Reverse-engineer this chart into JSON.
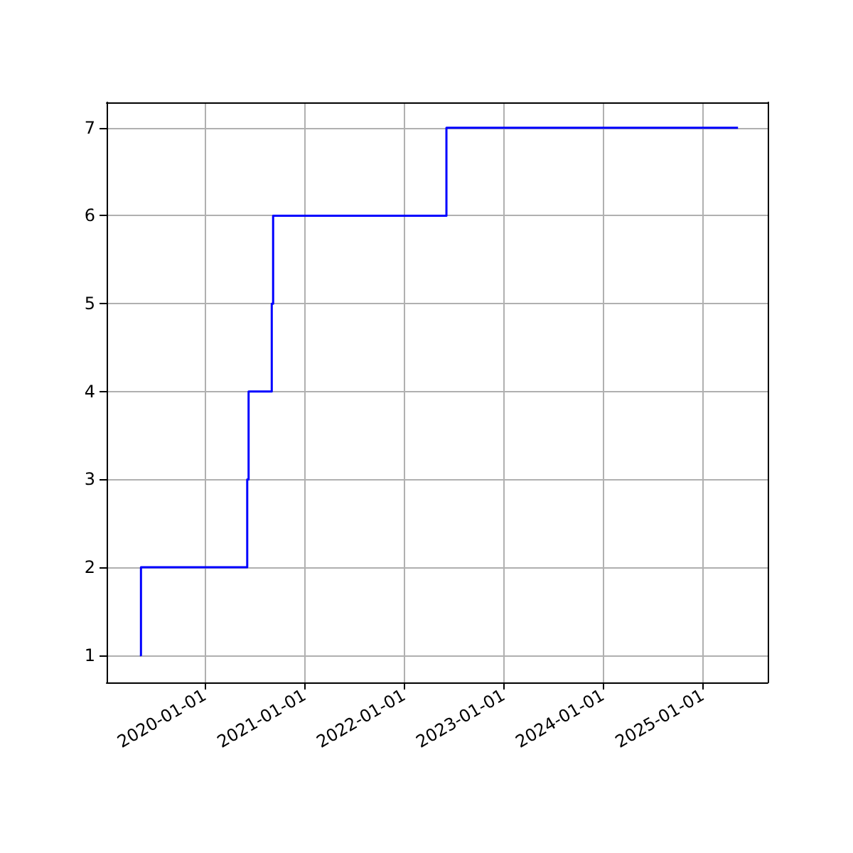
{
  "chart_data": {
    "type": "step",
    "x": [
      "2019-05-08",
      "2019-05-12",
      "2020-06-05",
      "2020-06-10",
      "2020-09-03",
      "2020-09-08",
      "2022-06-06",
      "2025-05-11"
    ],
    "series": [
      {
        "color": "#0000ff",
        "values": [
          1,
          2,
          3,
          4,
          5,
          6,
          7,
          7
        ]
      }
    ],
    "xlim": [
      "2019-01-06",
      "2025-08-28"
    ],
    "ylim": [
      0.69,
      7.29
    ],
    "xticks": [
      "2020-01-01",
      "2021-01-01",
      "2022-01-01",
      "2023-01-01",
      "2024-01-01",
      "2025-01-01"
    ],
    "yticks": [
      1,
      2,
      3,
      4,
      5,
      6,
      7
    ],
    "grid": true,
    "marker": "none",
    "line_style": "solid"
  }
}
